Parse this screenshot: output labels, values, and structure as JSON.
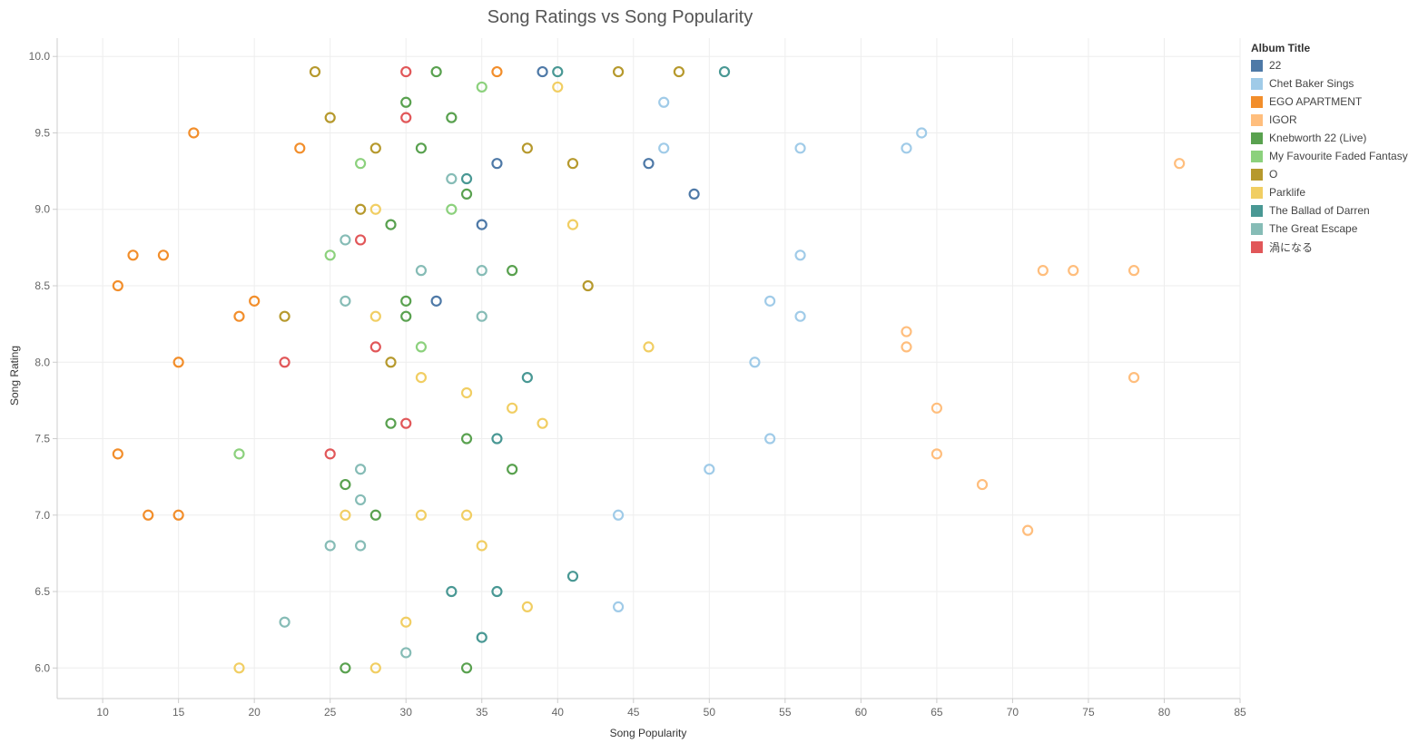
{
  "chart_data": {
    "type": "scatter",
    "title": "Song Ratings vs Song Popularity",
    "xlabel": "Song Popularity",
    "ylabel": "Song Rating",
    "xlim": [
      7,
      85
    ],
    "ylim": [
      5.8,
      10.12
    ],
    "x_ticks": [
      10,
      15,
      20,
      25,
      30,
      35,
      40,
      45,
      50,
      55,
      60,
      65,
      70,
      75,
      80,
      85
    ],
    "y_ticks": [
      "6.0",
      "6.5",
      "7.0",
      "7.5",
      "8.0",
      "8.5",
      "9.0",
      "9.5",
      "10.0"
    ],
    "grid": true,
    "legend_title": "Album Title",
    "legend_position": "right",
    "series": [
      {
        "name": "22",
        "color": "#4e79a7",
        "points": [
          [
            39,
            9.9
          ],
          [
            36,
            9.3
          ],
          [
            46,
            9.3
          ],
          [
            49,
            9.1
          ],
          [
            35,
            8.9
          ],
          [
            32,
            8.4
          ]
        ]
      },
      {
        "name": "Chet Baker Sings",
        "color": "#a0cbe8",
        "points": [
          [
            47,
            9.7
          ],
          [
            64,
            9.5
          ],
          [
            47,
            9.4
          ],
          [
            56,
            9.4
          ],
          [
            63,
            9.4
          ],
          [
            56,
            8.7
          ],
          [
            54,
            8.4
          ],
          [
            56,
            8.3
          ],
          [
            53,
            8.0
          ],
          [
            54,
            7.5
          ],
          [
            50,
            7.3
          ],
          [
            44,
            7.0
          ],
          [
            44,
            6.4
          ]
        ]
      },
      {
        "name": "EGO APARTMENT",
        "color": "#f28e2b",
        "points": [
          [
            36,
            9.9
          ],
          [
            16,
            9.5
          ],
          [
            23,
            9.4
          ],
          [
            12,
            8.7
          ],
          [
            14,
            8.7
          ],
          [
            11,
            8.5
          ],
          [
            20,
            8.4
          ],
          [
            19,
            8.3
          ],
          [
            15,
            8.0
          ],
          [
            11,
            7.4
          ],
          [
            13,
            7.0
          ],
          [
            15,
            7.0
          ]
        ]
      },
      {
        "name": "IGOR",
        "color": "#ffbe7d",
        "points": [
          [
            81,
            9.3
          ],
          [
            72,
            8.6
          ],
          [
            74,
            8.6
          ],
          [
            78,
            8.6
          ],
          [
            63,
            8.2
          ],
          [
            63,
            8.1
          ],
          [
            78,
            7.9
          ],
          [
            65,
            7.7
          ],
          [
            65,
            7.4
          ],
          [
            68,
            7.2
          ],
          [
            71,
            6.9
          ]
        ]
      },
      {
        "name": "Knebworth 22 (Live)",
        "color": "#59a14f",
        "points": [
          [
            32,
            9.9
          ],
          [
            30,
            9.7
          ],
          [
            33,
            9.6
          ],
          [
            31,
            9.4
          ],
          [
            34,
            9.1
          ],
          [
            29,
            8.9
          ],
          [
            37,
            8.6
          ],
          [
            30,
            8.4
          ],
          [
            30,
            8.3
          ],
          [
            29,
            7.6
          ],
          [
            34,
            7.5
          ],
          [
            37,
            7.3
          ],
          [
            26,
            7.2
          ],
          [
            28,
            7.0
          ],
          [
            26,
            6.0
          ],
          [
            34,
            6.0
          ]
        ]
      },
      {
        "name": "My Favourite Faded Fantasy",
        "color": "#8cd17d",
        "points": [
          [
            35,
            9.8
          ],
          [
            27,
            9.3
          ],
          [
            33,
            9.0
          ],
          [
            25,
            8.7
          ],
          [
            31,
            8.1
          ],
          [
            19,
            7.4
          ]
        ]
      },
      {
        "name": "O",
        "color": "#b6992d",
        "points": [
          [
            24,
            9.9
          ],
          [
            44,
            9.9
          ],
          [
            48,
            9.9
          ],
          [
            25,
            9.6
          ],
          [
            28,
            9.4
          ],
          [
            38,
            9.4
          ],
          [
            41,
            9.3
          ],
          [
            27,
            9.0
          ],
          [
            42,
            8.5
          ],
          [
            22,
            8.3
          ],
          [
            29,
            8.0
          ]
        ]
      },
      {
        "name": "Parklife",
        "color": "#f1ce63",
        "points": [
          [
            40,
            9.8
          ],
          [
            28,
            9.0
          ],
          [
            41,
            8.9
          ],
          [
            28,
            8.3
          ],
          [
            46,
            8.1
          ],
          [
            31,
            7.9
          ],
          [
            34,
            7.8
          ],
          [
            37,
            7.7
          ],
          [
            39,
            7.6
          ],
          [
            26,
            7.0
          ],
          [
            31,
            7.0
          ],
          [
            34,
            7.0
          ],
          [
            35,
            6.8
          ],
          [
            38,
            6.4
          ],
          [
            30,
            6.3
          ],
          [
            19,
            6.0
          ],
          [
            28,
            6.0
          ]
        ]
      },
      {
        "name": "The Ballad of Darren",
        "color": "#499894",
        "points": [
          [
            40,
            9.9
          ],
          [
            51,
            9.9
          ],
          [
            34,
            9.2
          ],
          [
            38,
            7.9
          ],
          [
            36,
            7.5
          ],
          [
            41,
            6.6
          ],
          [
            33,
            6.5
          ],
          [
            36,
            6.5
          ],
          [
            35,
            6.2
          ]
        ]
      },
      {
        "name": "The Great Escape",
        "color": "#86bcb6",
        "points": [
          [
            33,
            9.2
          ],
          [
            26,
            8.8
          ],
          [
            31,
            8.6
          ],
          [
            35,
            8.6
          ],
          [
            26,
            8.4
          ],
          [
            35,
            8.3
          ],
          [
            27,
            7.3
          ],
          [
            27,
            7.1
          ],
          [
            25,
            6.8
          ],
          [
            27,
            6.8
          ],
          [
            22,
            6.3
          ],
          [
            30,
            6.1
          ]
        ]
      },
      {
        "name": "渦になる",
        "color": "#e15759",
        "points": [
          [
            30,
            9.9
          ],
          [
            30,
            9.6
          ],
          [
            27,
            8.8
          ],
          [
            28,
            8.1
          ],
          [
            22,
            8.0
          ],
          [
            30,
            7.6
          ],
          [
            25,
            7.4
          ]
        ]
      }
    ]
  }
}
